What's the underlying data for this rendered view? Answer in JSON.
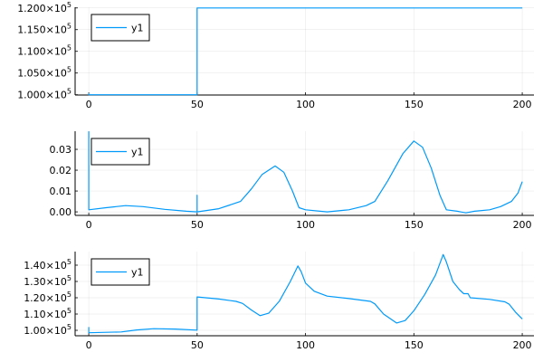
{
  "chart_data": [
    {
      "type": "line",
      "legend": {
        "entries": [
          "y1"
        ],
        "placement": "top-left"
      },
      "grid": true,
      "xlim": [
        -6.3,
        205.4
      ],
      "ylim": [
        99931,
        120160
      ],
      "xticks": [
        0,
        50,
        100,
        150,
        200
      ],
      "xticklabels": [
        "0",
        "50",
        "100",
        "150",
        "200"
      ],
      "yticks": [
        100000,
        105000,
        110000,
        115000,
        120000
      ],
      "yticklabels": [
        "1.000×10^5",
        "1.050×10^5",
        "1.100×10^5",
        "1.150×10^5",
        "1.200×10^5"
      ],
      "series": [
        {
          "name": "y1",
          "color": "#009AFA",
          "x": [
            0,
            0,
            0,
            50,
            50,
            200
          ],
          "y": [
            100400,
            100000,
            100000,
            100000,
            120000,
            120000
          ]
        }
      ]
    },
    {
      "type": "line",
      "legend": {
        "entries": [
          "y1"
        ],
        "placement": "top-left"
      },
      "grid": true,
      "xlim": [
        -6.3,
        205.4
      ],
      "ylim": [
        -0.0017,
        0.0387
      ],
      "xticks": [
        0,
        50,
        100,
        150,
        200
      ],
      "xticklabels": [
        "0",
        "50",
        "100",
        "150",
        "200"
      ],
      "yticks": [
        0,
        0.01,
        0.02,
        0.03
      ],
      "yticklabels": [
        "0.00",
        "0.01",
        "0.02",
        "0.03"
      ],
      "series": [
        {
          "name": "y1",
          "color": "#009AFA",
          "x": [
            0,
            0,
            0,
            8,
            17,
            25,
            35,
            45,
            50,
            50,
            50,
            60,
            70,
            75,
            80,
            86,
            90,
            94,
            97,
            100,
            110,
            120,
            128,
            132,
            138,
            145,
            150,
            154,
            158,
            162,
            165,
            170,
            174,
            178,
            185,
            190,
            195,
            198,
            200
          ],
          "y": [
            0.001,
            0.0385,
            0.001,
            0.002,
            0.003,
            0.0025,
            0.0012,
            0.0003,
            0.0,
            0.008,
            0.0,
            0.0015,
            0.005,
            0.011,
            0.018,
            0.022,
            0.019,
            0.01,
            0.002,
            0.001,
            0.0,
            0.001,
            0.003,
            0.005,
            0.015,
            0.028,
            0.034,
            0.031,
            0.021,
            0.008,
            0.001,
            0.0003,
            -0.0005,
            0.0003,
            0.001,
            0.0025,
            0.005,
            0.009,
            0.0145
          ]
        }
      ]
    },
    {
      "type": "line",
      "legend": {
        "entries": [
          "y1"
        ],
        "placement": "top-left"
      },
      "grid": true,
      "xlim": [
        -6.3,
        205.4
      ],
      "ylim": [
        96670,
        148330
      ],
      "xticks": [
        0,
        50,
        100,
        150,
        200
      ],
      "xticklabels": [
        "0",
        "50",
        "100",
        "150",
        "200"
      ],
      "yticks": [
        100000,
        110000,
        120000,
        130000,
        140000
      ],
      "yticklabels": [
        "1.00×10^5",
        "1.10×10^5",
        "1.20×10^5",
        "1.30×10^5",
        "1.40×10^5"
      ],
      "series": [
        {
          "name": "y1",
          "color": "#009AFA",
          "x": [
            0,
            0,
            0,
            15,
            22,
            30,
            40,
            50,
            50,
            60,
            68,
            71,
            75,
            79,
            83,
            88,
            93,
            96.5,
            98,
            100,
            104,
            110,
            120,
            130,
            132,
            136,
            142,
            146,
            150,
            155,
            160,
            163.5,
            165,
            168,
            171,
            173,
            175,
            176,
            185,
            192,
            194,
            197,
            200
          ],
          "y": [
            102000,
            98500,
            98500,
            99000,
            100200,
            101000,
            100800,
            100100,
            120500,
            119200,
            117800,
            116500,
            112500,
            109000,
            110500,
            118000,
            130000,
            139500,
            136000,
            129000,
            124000,
            121000,
            119500,
            117800,
            116200,
            110000,
            104500,
            106000,
            112000,
            122000,
            134000,
            146500,
            142000,
            130000,
            125000,
            122500,
            122500,
            120000,
            119000,
            117500,
            116000,
            111000,
            107000
          ]
        }
      ]
    }
  ]
}
